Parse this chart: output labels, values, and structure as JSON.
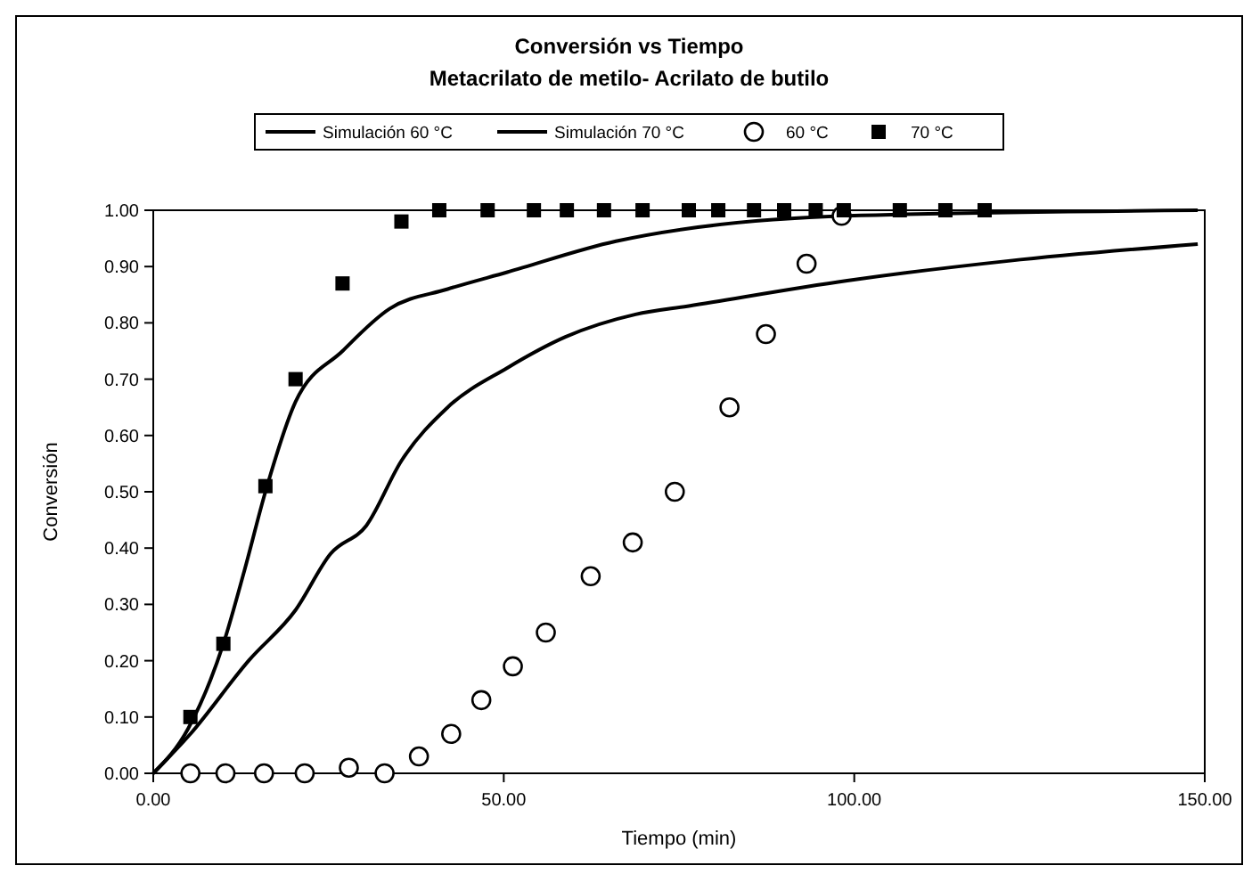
{
  "chart_data": {
    "type": "line",
    "title": "Conversión vs Tiempo",
    "subtitle": "Metacrilato de metilo- Acrilato de butilo",
    "xlabel": "Tiempo (min)",
    "ylabel": "Conversión",
    "xlim": [
      0,
      150
    ],
    "xticks": [
      {
        "value": 0,
        "label": "0.00"
      },
      {
        "value": 50,
        "label": "50.00"
      },
      {
        "value": 100,
        "label": "100.00"
      },
      {
        "value": 150,
        "label": "150.00"
      }
    ],
    "ylim": [
      0,
      1
    ],
    "yticks": [
      {
        "value": 0,
        "label": "0.00"
      },
      {
        "value": 0.1,
        "label": "0.10"
      },
      {
        "value": 0.2,
        "label": "0.20"
      },
      {
        "value": 0.3,
        "label": "0.30"
      },
      {
        "value": 0.4,
        "label": "0.40"
      },
      {
        "value": 0.5,
        "label": "0.50"
      },
      {
        "value": 0.6,
        "label": "0.60"
      },
      {
        "value": 0.7,
        "label": "0.70"
      },
      {
        "value": 0.8,
        "label": "0.80"
      },
      {
        "value": 0.9,
        "label": "0.90"
      },
      {
        "value": 1,
        "label": "1.00"
      }
    ],
    "grid": false,
    "legend": "top",
    "series": [
      {
        "name": "Simulación 60 °C",
        "marker": "none",
        "line_style": "solid",
        "color": "#000000",
        "x": [
          0,
          5.3,
          13.6,
          20.3,
          25.3,
          30.4,
          35.4,
          42,
          50.5,
          58.8,
          68.8,
          76.4,
          99,
          122,
          149
        ],
        "values": [
          0,
          0.07,
          0.2,
          0.29,
          0.39,
          0.44,
          0.555,
          0.65,
          0.72,
          0.775,
          0.815,
          0.83,
          0.875,
          0.91,
          0.94
        ]
      },
      {
        "name": "Simulación 70 °C",
        "marker": "none",
        "line_style": "solid",
        "color": "#000000",
        "x": [
          0,
          5,
          10,
          13,
          16,
          20.3,
          27,
          33.7,
          42,
          50.5,
          66,
          99,
          149
        ],
        "values": [
          0,
          0.08,
          0.23,
          0.36,
          0.5,
          0.66,
          0.75,
          0.825,
          0.86,
          0.89,
          0.945,
          0.99,
          1
        ]
      },
      {
        "name": "60 °C",
        "type": "scatter",
        "marker": "circle",
        "color": "#000000",
        "x": [
          5.3,
          10.3,
          15.8,
          21.6,
          27.9,
          33,
          37.9,
          42.5,
          46.8,
          51.3,
          56,
          62.4,
          68.4,
          74.4,
          82.2,
          87.4,
          93.2,
          98.2
        ],
        "values": [
          0,
          0,
          0,
          0,
          0.01,
          0,
          0.03,
          0.07,
          0.13,
          0.19,
          0.25,
          0.35,
          0.41,
          0.5,
          0.65,
          0.78,
          0.905,
          0.99
        ]
      },
      {
        "name": "70 °C",
        "type": "scatter",
        "marker": "square",
        "color": "#000000",
        "x": [
          5.3,
          10,
          16,
          20.3,
          27,
          35.4,
          40.8,
          47.7,
          54.3,
          59,
          64.3,
          69.8,
          76.4,
          80.6,
          85.7,
          90,
          94.5,
          98.5,
          106.5,
          113,
          118.6
        ],
        "values": [
          0.1,
          0.23,
          0.51,
          0.7,
          0.87,
          0.98,
          1,
          1,
          1,
          1,
          1,
          1,
          1,
          1,
          1,
          1,
          1,
          1,
          1,
          1,
          1
        ]
      }
    ]
  }
}
